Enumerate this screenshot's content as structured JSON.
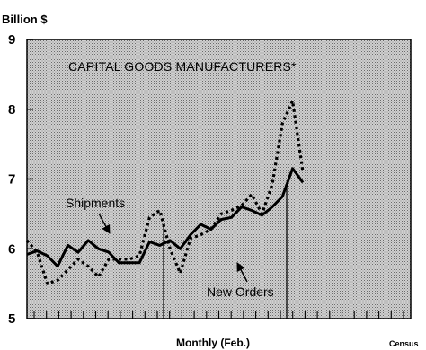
{
  "chart_data": {
    "type": "line",
    "unit_label": "Billion $",
    "title": "CAPITAL GOODS MANUFACTURERS*",
    "xlabel": "Monthly (Feb.)",
    "source": "Census",
    "ylim": [
      5,
      9
    ],
    "yticks": [
      5,
      6,
      7,
      8,
      9
    ],
    "period_count": 31,
    "grid": false,
    "shaded_background": true,
    "series": [
      {
        "name": "Shipments",
        "style": "solid",
        "color": "#000000",
        "values": [
          5.92,
          5.97,
          5.9,
          5.75,
          6.05,
          5.95,
          6.12,
          6.0,
          5.95,
          5.8,
          5.8,
          5.8,
          6.1,
          6.05,
          6.12,
          6.0,
          6.2,
          6.35,
          6.28,
          6.42,
          6.45,
          6.6,
          6.55,
          6.48,
          6.6,
          6.75,
          7.15,
          6.95
        ]
      },
      {
        "name": "New Orders",
        "style": "dotted",
        "color": "#000000",
        "values": [
          6.12,
          5.95,
          5.5,
          5.55,
          5.7,
          5.85,
          5.75,
          5.6,
          5.85,
          5.85,
          5.85,
          5.9,
          6.45,
          6.55,
          6.0,
          5.65,
          6.15,
          6.2,
          6.28,
          6.5,
          6.55,
          6.62,
          6.78,
          6.5,
          6.92,
          7.8,
          8.12,
          7.1
        ]
      }
    ],
    "annotations": [
      {
        "text": "Shipments",
        "series": "Shipments"
      },
      {
        "text": "New Orders",
        "series": "New Orders"
      }
    ]
  }
}
